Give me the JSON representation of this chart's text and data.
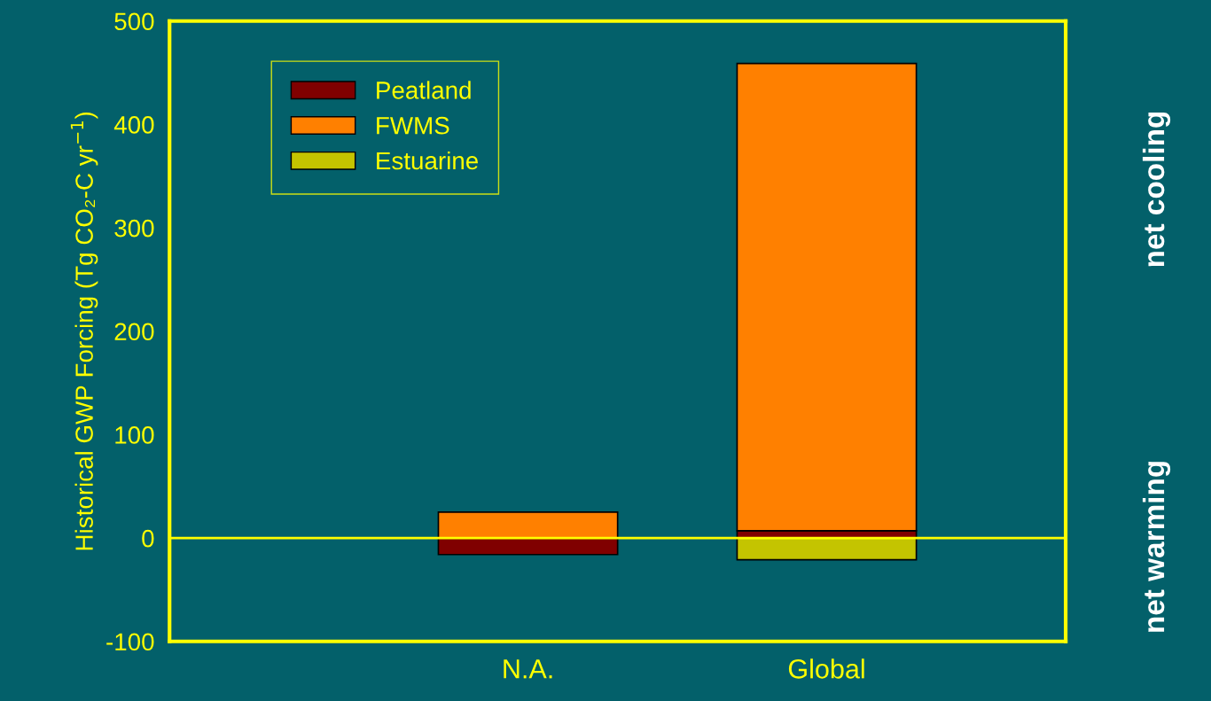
{
  "chart_data": {
    "type": "bar",
    "stacked": true,
    "ylabel": "Historical GWP Forcing (Tg CO₂-C yr$^{−1}$)",
    "categories": [
      "N.A.",
      "Global"
    ],
    "series": [
      {
        "name": "Peatland",
        "color": "#800000",
        "values": [
          -16,
          7
        ]
      },
      {
        "name": "FWMS",
        "color": "#ff8000",
        "values": [
          25,
          452
        ]
      },
      {
        "name": "Estuarine",
        "color": "#c4c400",
        "values": [
          null,
          -21
        ]
      }
    ],
    "ylim": [
      -100,
      500
    ],
    "yticks": [
      -100,
      0,
      100,
      200,
      300,
      400,
      500
    ],
    "ref_lines": [
      {
        "axis": "y",
        "value": 0,
        "color": "#ffff00"
      }
    ],
    "annotations": [
      "net cooling",
      "net warming"
    ],
    "legend": "top left",
    "grid": false
  }
}
